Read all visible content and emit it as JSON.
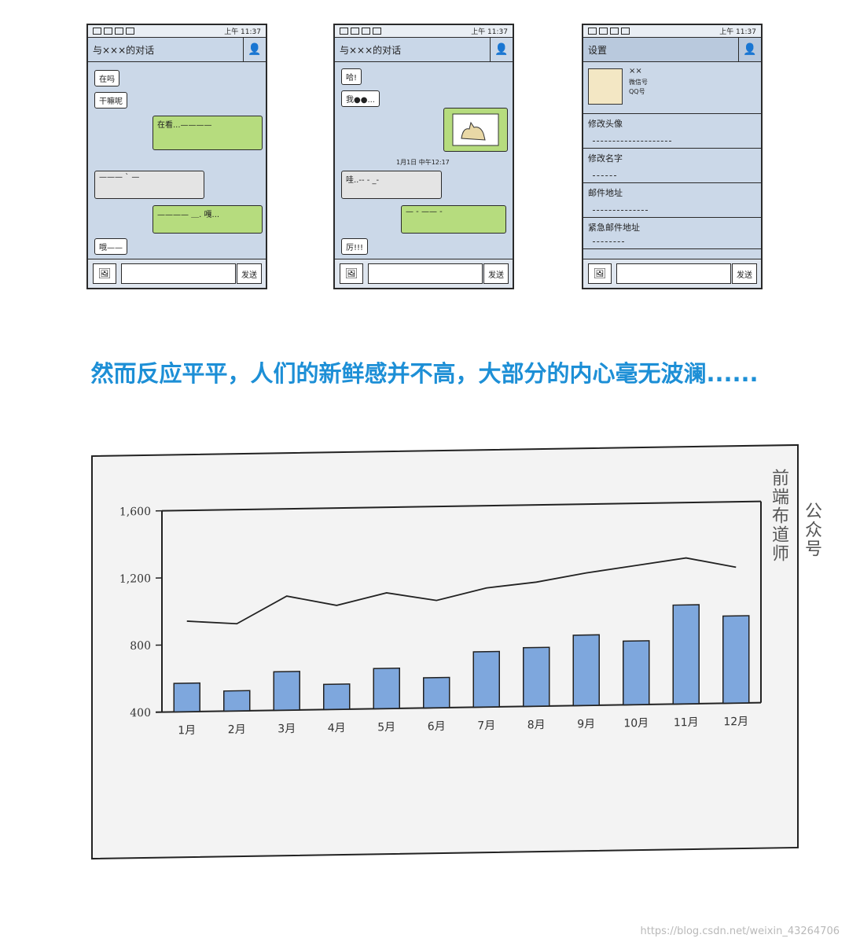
{
  "phones": [
    {
      "title": "与×××的对话",
      "messages": [
        {
          "dir": "in",
          "text": "在吗"
        },
        {
          "dir": "in",
          "text": "干嘛呢"
        },
        {
          "dir": "out",
          "text": "在看...————"
        },
        {
          "dir": "grey",
          "text": "——— ˋ —"
        },
        {
          "dir": "out",
          "text": "———— ＿. 嘎..."
        },
        {
          "dir": "in",
          "text": "哦——"
        }
      ],
      "send_label": "发送"
    },
    {
      "title": "与×××的对话",
      "messages": [
        {
          "dir": "in",
          "text": "哈!"
        },
        {
          "dir": "in",
          "text": "我●●..."
        },
        {
          "dir": "grey",
          "text": "哇..-- - _-"
        },
        {
          "dir": "out",
          "text": "— - ——  -"
        },
        {
          "dir": "in",
          "text": "厉!!!"
        }
      ],
      "timestamp": "1月1日 中午12:17",
      "send_label": "发送"
    },
    {
      "title": "设置",
      "profile": {
        "name": "××",
        "line1": "微信号",
        "line2": "QQ号"
      },
      "rows": [
        "修改头像",
        "修改名字",
        "邮件地址",
        "紧急邮件地址"
      ],
      "send_label": "发送"
    }
  ],
  "status_time": "上午 11:37",
  "headline": "然而反应平平，人们的新鲜感并不高，大部分的内心毫无波澜......",
  "side_caption_1": "前端布道师",
  "side_caption_2": "公众号",
  "watermark": "https://blog.csdn.net/weixin_43264706",
  "chart_data": {
    "type": "bar",
    "categories": [
      "1月",
      "2月",
      "3月",
      "4月",
      "5月",
      "6月",
      "7月",
      "8月",
      "9月",
      "10月",
      "11月",
      "12月"
    ],
    "series": [
      {
        "type": "bar",
        "values": [
          570,
          520,
          630,
          550,
          640,
          580,
          730,
          750,
          820,
          780,
          990,
          920
        ]
      },
      {
        "type": "line",
        "values": [
          940,
          920,
          1080,
          1020,
          1090,
          1040,
          1110,
          1140,
          1190,
          1230,
          1270,
          1210
        ]
      }
    ],
    "yticks": [
      "400",
      "800",
      "1,200",
      "1,600"
    ],
    "ylim": [
      400,
      1600
    ],
    "bar_color": "#7ea7dd",
    "line_color": "#222222"
  }
}
